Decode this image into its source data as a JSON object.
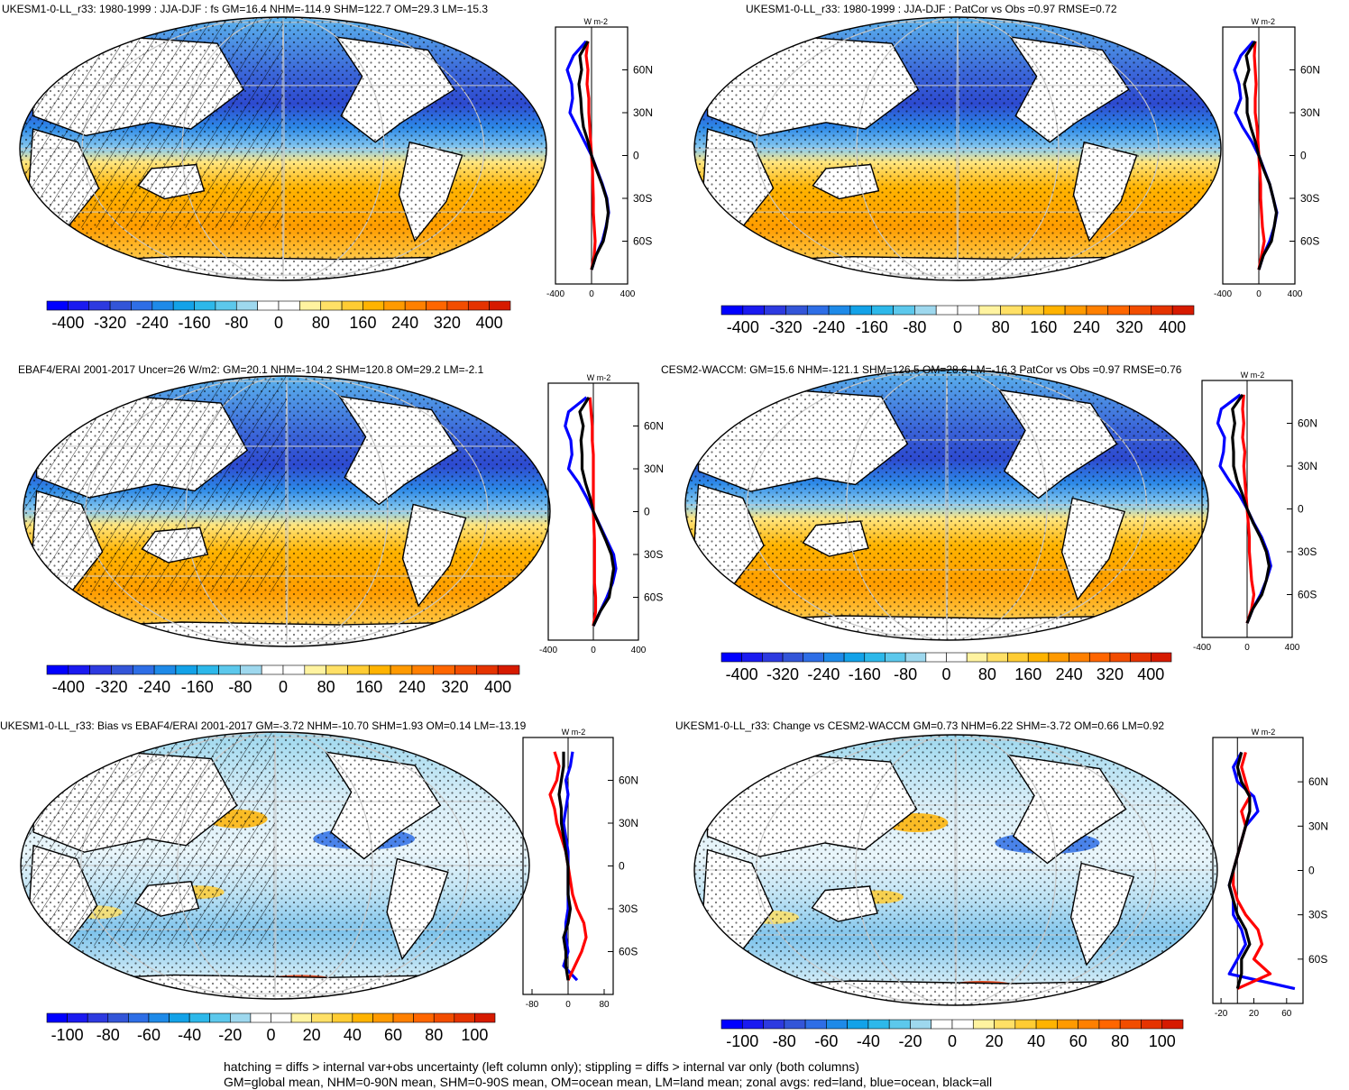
{
  "colors": {
    "ocean_blue": "#0000ff",
    "land_red": "#ff0000",
    "all_black": "#000000"
  },
  "footer": {
    "line1": "hatching = diffs > internal var+obs uncertainty (left column only); stippling = diffs > internal var only (both columns)",
    "line2": "GM=global mean, NHM=0-90N mean, SHM=0-90S mean, OM=ocean mean, LM=land mean; zonal avgs: red=land, blue=ocean, black=all"
  },
  "colorbars": {
    "absolute": {
      "labels": [
        "-400",
        "-320",
        "-240",
        "-160",
        "-80",
        "0",
        "80",
        "160",
        "240",
        "320",
        "400"
      ],
      "colors": [
        "#0000ff",
        "#1a1af0",
        "#2d3ae0",
        "#3355d8",
        "#2e6ee6",
        "#1e8ae8",
        "#13a2e8",
        "#2db8ea",
        "#5cc8ec",
        "#9ed8ee",
        "#ffffff",
        "#ffffff",
        "#fff3a0",
        "#ffe066",
        "#ffcc33",
        "#ffb300",
        "#ff9a00",
        "#ff8000",
        "#ff6600",
        "#f24d00",
        "#e53300",
        "#d61a00"
      ]
    },
    "difference": {
      "labels": [
        "-100",
        "-80",
        "-60",
        "-40",
        "-20",
        "0",
        "20",
        "40",
        "60",
        "80",
        "100"
      ],
      "colors": [
        "#0000ff",
        "#1a1af0",
        "#2d3ae0",
        "#3355d8",
        "#2e6ee6",
        "#1e8ae8",
        "#13a2e8",
        "#2db8ea",
        "#5cc8ec",
        "#9ed8ee",
        "#ffffff",
        "#ffffff",
        "#fff3a0",
        "#ffe066",
        "#ffcc33",
        "#ffb300",
        "#ff9a00",
        "#ff8000",
        "#ff6600",
        "#f24d00",
        "#e53300",
        "#d61a00"
      ]
    }
  },
  "chart_data": [
    {
      "type": "line",
      "title": "UKESM1-0-LL_r33: 1980-1999 : JJA-DJF : fs GM=16.4 NHM=-114.9 SHM=122.7 OM=29.3 LM=-15.3",
      "ylabel": "W m-2",
      "xlim": [
        -400,
        400
      ],
      "xticks": [
        "-400",
        "0",
        "400"
      ],
      "yticks": [
        "60N",
        "30N",
        "0",
        "30S",
        "60S"
      ],
      "lat": [
        80,
        70,
        60,
        50,
        40,
        30,
        20,
        10,
        0,
        -10,
        -20,
        -30,
        -40,
        -50,
        -60,
        -70,
        -80
      ],
      "series": [
        {
          "color": "ocean",
          "values": [
            -60,
            -200,
            -270,
            -220,
            -210,
            -240,
            -160,
            -80,
            0,
            60,
            120,
            170,
            190,
            160,
            120,
            50,
            0
          ]
        },
        {
          "color": "land",
          "values": [
            -40,
            -60,
            -40,
            -50,
            -30,
            -30,
            -20,
            -10,
            0,
            10,
            15,
            20,
            20,
            30,
            40,
            30,
            0
          ]
        },
        {
          "color": "all",
          "values": [
            -40,
            -130,
            -110,
            -140,
            -120,
            -110,
            -90,
            -40,
            0,
            55,
            115,
            165,
            185,
            165,
            130,
            50,
            0
          ]
        }
      ]
    },
    {
      "type": "line",
      "title": "UKESM1-0-LL_r33: 1980-1999 : JJA-DJF : PatCor vs Obs =0.97 RMSE=0.72",
      "ylabel": "W m-2",
      "xlim": [
        -400,
        400
      ],
      "xticks": [
        "-400",
        "0",
        "400"
      ],
      "yticks": [
        "60N",
        "30N",
        "0",
        "30S",
        "60S"
      ],
      "lat": [
        80,
        70,
        60,
        50,
        40,
        30,
        20,
        10,
        0,
        -10,
        -20,
        -30,
        -40,
        -50,
        -60,
        -70,
        -80
      ],
      "series": [
        {
          "color": "ocean",
          "values": [
            -60,
            -200,
            -270,
            -220,
            -200,
            -260,
            -180,
            -80,
            0,
            60,
            120,
            160,
            200,
            170,
            120,
            50,
            0
          ]
        },
        {
          "color": "land",
          "values": [
            -40,
            -50,
            -40,
            -30,
            -40,
            -40,
            -20,
            -10,
            0,
            10,
            20,
            20,
            30,
            40,
            60,
            30,
            0
          ]
        },
        {
          "color": "all",
          "values": [
            -40,
            -140,
            -110,
            -160,
            -130,
            -130,
            -90,
            -40,
            0,
            55,
            120,
            160,
            195,
            170,
            140,
            50,
            0
          ]
        }
      ]
    },
    {
      "type": "line",
      "title": "EBAF4/ERAI 2001-2017 Uncer=26 W/m2: GM=20.1 NHM=-104.2 SHM=120.8 OM=29.2 LM=-2.1",
      "ylabel": "W m-2",
      "xlim": [
        -400,
        400
      ],
      "xticks": [
        "-400",
        "0",
        "400"
      ],
      "yticks": [
        "60N",
        "30N",
        "0",
        "30S",
        "60S"
      ],
      "lat": [
        80,
        70,
        60,
        50,
        40,
        30,
        20,
        10,
        0,
        -10,
        -20,
        -30,
        -40,
        -50,
        -60,
        -70,
        -80
      ],
      "series": [
        {
          "color": "ocean",
          "values": [
            -60,
            -220,
            -250,
            -200,
            -190,
            -220,
            -130,
            -60,
            0,
            60,
            120,
            180,
            200,
            170,
            120,
            60,
            0
          ]
        },
        {
          "color": "land",
          "values": [
            -30,
            -20,
            -10,
            -10,
            0,
            0,
            0,
            0,
            0,
            5,
            10,
            10,
            10,
            10,
            20,
            20,
            0
          ]
        },
        {
          "color": "all",
          "values": [
            -40,
            -120,
            -90,
            -110,
            -100,
            -100,
            -70,
            -30,
            0,
            55,
            110,
            160,
            180,
            160,
            140,
            60,
            0
          ]
        }
      ]
    },
    {
      "type": "line",
      "title": "CESM2-WACCM: GM=15.6 NHM=-121.1 SHM=126.5 OM=28.6 LM=-16.3 PatCor vs Obs =0.97 RMSE=0.76",
      "ylabel": "W m-2",
      "xlim": [
        -400,
        400
      ],
      "xticks": [
        "-400",
        "0",
        "400"
      ],
      "yticks": [
        "60N",
        "30N",
        "0",
        "30S",
        "60S"
      ],
      "lat": [
        80,
        70,
        60,
        50,
        40,
        30,
        20,
        10,
        0,
        -10,
        -20,
        -30,
        -40,
        -50,
        -60,
        -70,
        -80
      ],
      "series": [
        {
          "color": "ocean",
          "values": [
            -60,
            -230,
            -260,
            -200,
            -210,
            -240,
            -160,
            -70,
            0,
            60,
            130,
            180,
            210,
            170,
            120,
            50,
            0
          ]
        },
        {
          "color": "land",
          "values": [
            -30,
            -40,
            -30,
            -40,
            -20,
            -30,
            -20,
            -10,
            0,
            10,
            20,
            20,
            30,
            40,
            60,
            40,
            0
          ]
        },
        {
          "color": "all",
          "values": [
            -40,
            -130,
            -110,
            -130,
            -120,
            -120,
            -90,
            -40,
            0,
            55,
            120,
            170,
            195,
            170,
            130,
            50,
            0
          ]
        }
      ]
    },
    {
      "type": "line",
      "title": "UKESM1-0-LL_r33: Bias vs EBAF4/ERAI 2001-2017 GM=-3.72 NHM=-10.70 SHM=1.93 OM=0.14 LM=-13.19",
      "ylabel": "W m-2",
      "xlim": [
        -100,
        100
      ],
      "xticks": [
        "-80",
        "0",
        "80"
      ],
      "yticks": [
        "60N",
        "30N",
        "0",
        "30S",
        "60S"
      ],
      "lat": [
        80,
        70,
        60,
        50,
        40,
        30,
        20,
        10,
        0,
        -10,
        -20,
        -30,
        -40,
        -50,
        -60,
        -70,
        -80
      ],
      "series": [
        {
          "color": "ocean",
          "values": [
            10,
            5,
            -5,
            0,
            -5,
            -10,
            -5,
            0,
            0,
            0,
            0,
            0,
            -5,
            -5,
            0,
            -10,
            20
          ]
        },
        {
          "color": "land",
          "values": [
            -30,
            -20,
            -25,
            -40,
            -30,
            -25,
            -15,
            -5,
            0,
            5,
            10,
            20,
            35,
            40,
            30,
            15,
            0
          ]
        },
        {
          "color": "all",
          "values": [
            -10,
            -10,
            -15,
            -20,
            -15,
            -15,
            -10,
            -5,
            0,
            0,
            0,
            5,
            0,
            -10,
            -5,
            -5,
            0
          ]
        }
      ]
    },
    {
      "type": "line",
      "title": "UKESM1-0-LL_r33: Change vs CESM2-WACCM GM=0.73 NHM=6.22 SHM=-3.72 OM=0.66 LM=0.92",
      "ylabel": "W m-2",
      "xlim": [
        -30,
        80
      ],
      "xticks": [
        "-20",
        "20",
        "60"
      ],
      "yticks": [
        "60N",
        "30N",
        "0",
        "30S",
        "60S"
      ],
      "lat": [
        80,
        70,
        60,
        50,
        40,
        30,
        20,
        10,
        0,
        -10,
        -20,
        -30,
        -40,
        -50,
        -60,
        -70,
        -80
      ],
      "series": [
        {
          "color": "ocean",
          "values": [
            5,
            -5,
            0,
            20,
            25,
            10,
            5,
            0,
            -5,
            -10,
            -5,
            -5,
            5,
            10,
            0,
            -10,
            70
          ]
        },
        {
          "color": "land",
          "values": [
            10,
            5,
            10,
            15,
            5,
            10,
            5,
            0,
            -5,
            -5,
            0,
            10,
            25,
            30,
            20,
            40,
            0
          ]
        },
        {
          "color": "all",
          "values": [
            5,
            0,
            5,
            15,
            15,
            10,
            5,
            0,
            -5,
            -10,
            -5,
            0,
            10,
            15,
            5,
            5,
            0
          ]
        }
      ]
    }
  ]
}
